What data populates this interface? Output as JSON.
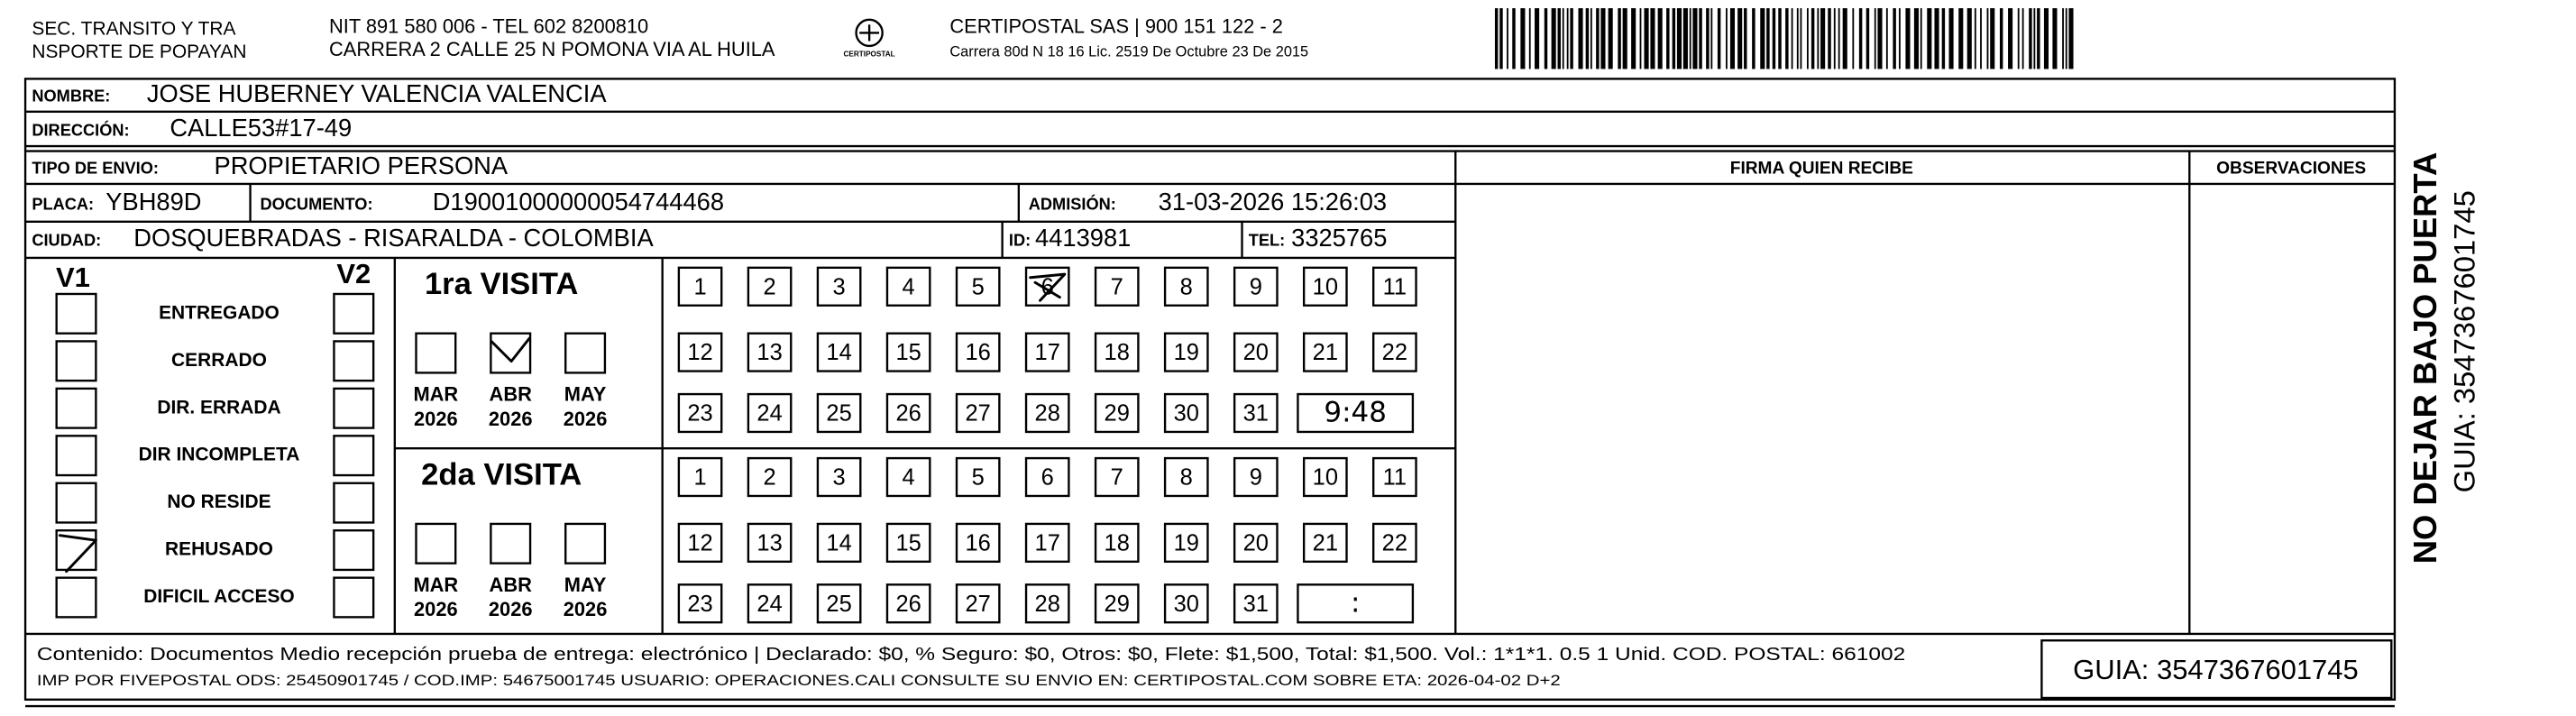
{
  "header": {
    "sender": [
      "SEC. TRANSITO Y TRA",
      "NSPORTE DE POPAYAN"
    ],
    "nit": "NIT 891 580 006 - TEL 602 8200810",
    "address": "CARRERA 2 CALLE 25 N POMONA VIA AL HUILA",
    "logo_text": "CERTIPOSTAL",
    "company": "CERTIPOSTAL SAS | 900 151 122 - 2",
    "license": "Carrera 80d N 18 16  Lic. 2519 De Octubre 23 De 2015"
  },
  "fields": {
    "nombre": {
      "label": "NOMBRE:",
      "value": "JOSE HUBERNEY VALENCIA VALENCIA"
    },
    "direccion": {
      "label": "DIRECCIÓN:",
      "value": "CALLE53#17-49"
    },
    "tipo": {
      "label": "TIPO DE ENVIO:",
      "value": "PROPIETARIO PERSONA"
    },
    "placa": {
      "label": "PLACA:",
      "value": "YBH89D"
    },
    "documento": {
      "label": "DOCUMENTO:",
      "value": "D19001000000054744468"
    },
    "admision": {
      "label": "ADMISIÓN:",
      "value": "31-03-2026 15:26:03"
    },
    "ciudad": {
      "label": "CIUDAD:",
      "value": "DOSQUEBRADAS - RISARALDA - COLOMBIA"
    },
    "id": {
      "label": "ID:",
      "value": "4413981"
    },
    "tel": {
      "label": "TEL:",
      "value": "3325765"
    }
  },
  "columns": {
    "firma": "FIRMA QUIEN RECIBE",
    "observaciones": "OBSERVACIONES"
  },
  "status": {
    "v1": "V1",
    "v2": "V2",
    "options": [
      "ENTREGADO",
      "CERRADO",
      "DIR. ERRADA",
      "DIR INCOMPLETA",
      "NO RESIDE",
      "REHUSADO",
      "DIFICIL ACCESO"
    ]
  },
  "visits": [
    {
      "title": "1ra VISITA",
      "months": [
        {
          "month": "MAR",
          "year": "2026"
        },
        {
          "month": "ABR",
          "year": "2026"
        },
        {
          "month": "MAY",
          "year": "2026"
        }
      ],
      "time": "9:48"
    },
    {
      "title": "2da VISITA",
      "months": [
        {
          "month": "MAR",
          "year": "2026"
        },
        {
          "month": "ABR",
          "year": "2026"
        },
        {
          "month": "MAY",
          "year": "2026"
        }
      ],
      "time": ":"
    }
  ],
  "days": [
    1,
    2,
    3,
    4,
    5,
    6,
    7,
    8,
    9,
    10,
    11,
    12,
    13,
    14,
    15,
    16,
    17,
    18,
    19,
    20,
    21,
    22,
    23,
    24,
    25,
    26,
    27,
    28,
    29,
    30,
    31
  ],
  "footer": {
    "content": "Contenido: Documentos Medio recepción prueba de entrega: electrónico | Declarado: $0, % Seguro: $0, Otros: $0, Flete: $1,500, Total: $1,500. Vol.: 1*1*1. 0.5  1 Unid. COD. POSTAL: 661002",
    "imp": "IMP POR FIVEPOSTAL ODS: 25450901745 / COD.IMP: 54675001745 USUARIO: OPERACIONES.CALI CONSULTE SU ENVIO EN: CERTIPOSTAL.COM SOBRE ETA: 2026-04-02 D+2",
    "guia": "GUIA: 3547367601745"
  },
  "side": {
    "warning": "NO DEJAR BAJO PUERTA",
    "guia": "GUIA: 3547367601745"
  }
}
